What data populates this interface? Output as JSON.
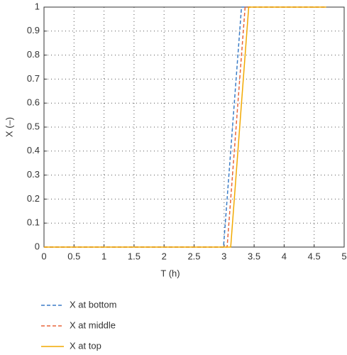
{
  "chart_data": {
    "type": "line",
    "xlabel": "T (h)",
    "ylabel": "X (–)",
    "xlim": [
      0,
      5
    ],
    "xticks": [
      0,
      0.5,
      1,
      1.5,
      2,
      2.5,
      3,
      3.5,
      4,
      4.5,
      5
    ],
    "ylim": [
      0,
      1
    ],
    "yticks": [
      0,
      0.1,
      0.2,
      0.3,
      0.4,
      0.5,
      0.6,
      0.7,
      0.8,
      0.9,
      1
    ],
    "grid": true,
    "series": [
      {
        "name": "X at bottom",
        "color": "#3a7cc7",
        "dashed": true,
        "x": [
          0,
          2.99,
          3.29,
          4.7
        ],
        "values": [
          0,
          0,
          1,
          1
        ]
      },
      {
        "name": "X at middle",
        "color": "#e8653a",
        "dashed": true,
        "x": [
          0,
          3.05,
          3.35,
          4.7
        ],
        "values": [
          0,
          0,
          1,
          1
        ]
      },
      {
        "name": "X at top",
        "color": "#f2a900",
        "dashed": false,
        "x": [
          0,
          3.11,
          3.41,
          4.7
        ],
        "values": [
          0,
          0,
          1,
          1
        ]
      }
    ]
  }
}
